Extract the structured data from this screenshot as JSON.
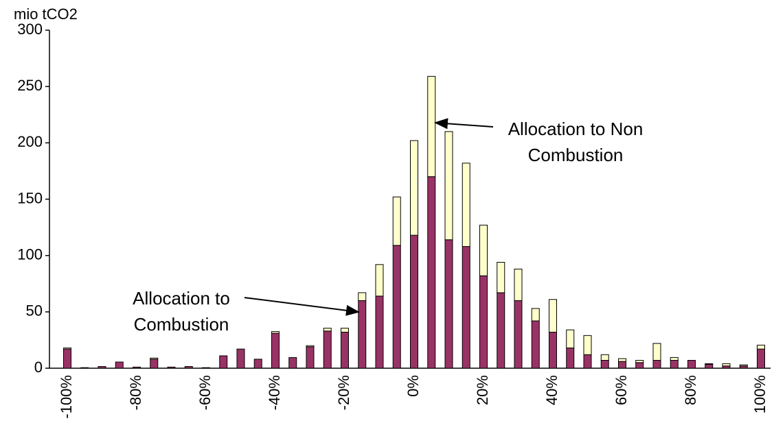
{
  "chart_data": {
    "type": "stacked-bar",
    "y_label": "mio tCO2",
    "categories": [
      "-100%",
      null,
      null,
      null,
      "-80%",
      null,
      null,
      null,
      "-60%",
      null,
      null,
      null,
      "-40%",
      null,
      null,
      null,
      "-20%",
      null,
      null,
      null,
      "0%",
      null,
      null,
      null,
      "20%",
      null,
      null,
      null,
      "40%",
      null,
      null,
      null,
      "60%",
      null,
      null,
      null,
      "80%",
      null,
      null,
      null,
      "100%"
    ],
    "series": [
      {
        "color": "#993366",
        "values": [
          17,
          0.5,
          1.5,
          5.5,
          1,
          8,
          1,
          1.5,
          0.5,
          11,
          17,
          8,
          31,
          9.5,
          19,
          33,
          32,
          60,
          64,
          109,
          118,
          170,
          114,
          108,
          82,
          67,
          60,
          42,
          32,
          18,
          12,
          7,
          6,
          5,
          7,
          7,
          7,
          3.5,
          2,
          2,
          17
        ]
      },
      {
        "color": "#ffffcc",
        "values": [
          1,
          0,
          0,
          0,
          0,
          1,
          0,
          0,
          0,
          0,
          0,
          0,
          1.5,
          0,
          1,
          2.5,
          3.5,
          7,
          28,
          43,
          84,
          89,
          96,
          74,
          45,
          27,
          28,
          11,
          29,
          16,
          17,
          5,
          2.5,
          2,
          15,
          2.5,
          0,
          0.5,
          2,
          1,
          3.5
        ]
      }
    ],
    "ylim": [
      0,
      300
    ],
    "yticks": [
      0,
      50,
      100,
      150,
      200,
      250,
      300
    ],
    "annotations": [
      {
        "lines": [
          "Allocation to Non",
          "Combustion"
        ]
      },
      {
        "lines": [
          "Allocation to",
          "Combustion"
        ]
      }
    ]
  }
}
